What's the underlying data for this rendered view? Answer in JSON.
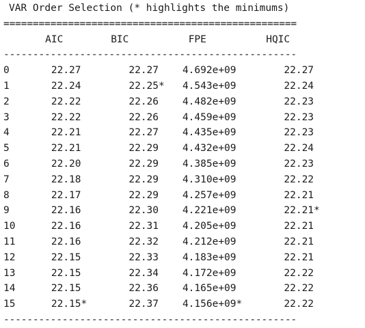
{
  "title": "VAR Order Selection (* highlights the minimums)",
  "separator_top": "==================================================",
  "separator_mid": "--------------------------------------------------",
  "separator_bottom": "--------------------------------------------------",
  "columns": [
    "AIC",
    "BIC",
    "FPE",
    "HQIC"
  ],
  "rows": [
    {
      "lag": "0",
      "aic": "22.27",
      "bic": "22.27",
      "fpe": "4.692e+09",
      "hqic": "22.27"
    },
    {
      "lag": "1",
      "aic": "22.24",
      "bic": "22.25*",
      "fpe": "4.543e+09",
      "hqic": "22.24"
    },
    {
      "lag": "2",
      "aic": "22.22",
      "bic": "22.26",
      "fpe": "4.482e+09",
      "hqic": "22.23"
    },
    {
      "lag": "3",
      "aic": "22.22",
      "bic": "22.26",
      "fpe": "4.459e+09",
      "hqic": "22.23"
    },
    {
      "lag": "4",
      "aic": "22.21",
      "bic": "22.27",
      "fpe": "4.435e+09",
      "hqic": "22.23"
    },
    {
      "lag": "5",
      "aic": "22.21",
      "bic": "22.29",
      "fpe": "4.432e+09",
      "hqic": "22.24"
    },
    {
      "lag": "6",
      "aic": "22.20",
      "bic": "22.29",
      "fpe": "4.385e+09",
      "hqic": "22.23"
    },
    {
      "lag": "7",
      "aic": "22.18",
      "bic": "22.29",
      "fpe": "4.310e+09",
      "hqic": "22.22"
    },
    {
      "lag": "8",
      "aic": "22.17",
      "bic": "22.29",
      "fpe": "4.257e+09",
      "hqic": "22.21"
    },
    {
      "lag": "9",
      "aic": "22.16",
      "bic": "22.30",
      "fpe": "4.221e+09",
      "hqic": "22.21*"
    },
    {
      "lag": "10",
      "aic": "22.16",
      "bic": "22.31",
      "fpe": "4.205e+09",
      "hqic": "22.21"
    },
    {
      "lag": "11",
      "aic": "22.16",
      "bic": "22.32",
      "fpe": "4.212e+09",
      "hqic": "22.21"
    },
    {
      "lag": "12",
      "aic": "22.15",
      "bic": "22.33",
      "fpe": "4.183e+09",
      "hqic": "22.21"
    },
    {
      "lag": "13",
      "aic": "22.15",
      "bic": "22.34",
      "fpe": "4.172e+09",
      "hqic": "22.22"
    },
    {
      "lag": "14",
      "aic": "22.15",
      "bic": "22.36",
      "fpe": "4.165e+09",
      "hqic": "22.22"
    },
    {
      "lag": "15",
      "aic": "22.15*",
      "bic": "22.37",
      "fpe": "4.156e+09*",
      "hqic": "22.22"
    }
  ]
}
